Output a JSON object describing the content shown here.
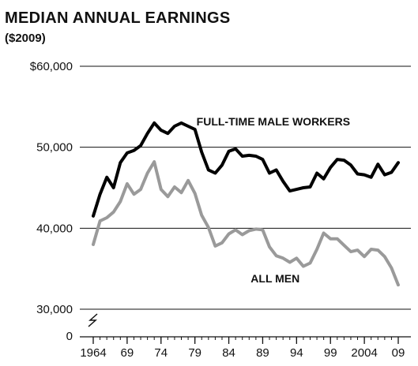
{
  "chart_data": {
    "type": "line",
    "title": "MEDIAN ANNUAL EARNINGS",
    "subtitle": "($2009)",
    "xlabel": "",
    "ylabel": "",
    "xlim": [
      1964,
      2009
    ],
    "ylim": [
      30000,
      60000
    ],
    "y_axis_break": true,
    "yticks": [
      {
        "value": 60000,
        "label": "$60,000"
      },
      {
        "value": 50000,
        "label": "50,000"
      },
      {
        "value": 40000,
        "label": "40,000"
      },
      {
        "value": 30000,
        "label": "30,000"
      },
      {
        "value": 0,
        "label": "0"
      }
    ],
    "xticks": [
      {
        "value": 1964,
        "label": "1964"
      },
      {
        "value": 1969,
        "label": "69"
      },
      {
        "value": 1974,
        "label": "74"
      },
      {
        "value": 1979,
        "label": "79"
      },
      {
        "value": 1984,
        "label": "84"
      },
      {
        "value": 1989,
        "label": "89"
      },
      {
        "value": 1994,
        "label": "94"
      },
      {
        "value": 1999,
        "label": "99"
      },
      {
        "value": 2004,
        "label": "2004"
      },
      {
        "value": 2009,
        "label": "09"
      }
    ],
    "grid": "horizontal",
    "legend": "none",
    "series": [
      {
        "name": "FULL-TIME MALE WORKERS",
        "color": "#000000",
        "x": [
          1964,
          1965,
          1966,
          1967,
          1968,
          1969,
          1970,
          1971,
          1972,
          1973,
          1974,
          1975,
          1976,
          1977,
          1978,
          1979,
          1980,
          1981,
          1982,
          1983,
          1984,
          1985,
          1986,
          1987,
          1988,
          1989,
          1990,
          1991,
          1992,
          1993,
          1994,
          1995,
          1996,
          1997,
          1998,
          1999,
          2000,
          2001,
          2002,
          2003,
          2004,
          2005,
          2006,
          2007,
          2008,
          2009
        ],
        "values": [
          41500,
          44200,
          46300,
          45000,
          48100,
          49300,
          49600,
          50200,
          51700,
          53000,
          52100,
          51700,
          52600,
          53000,
          52600,
          52200,
          49400,
          47200,
          46800,
          47800,
          49500,
          49800,
          48900,
          49000,
          48900,
          48500,
          46800,
          47200,
          45800,
          44600,
          44800,
          45000,
          45100,
          46800,
          46100,
          47500,
          48500,
          48400,
          47800,
          46700,
          46600,
          46300,
          47900,
          46600,
          46900,
          48100
        ]
      },
      {
        "name": "ALL MEN",
        "color": "#9a9a9a",
        "x": [
          1964,
          1965,
          1966,
          1967,
          1968,
          1969,
          1970,
          1971,
          1972,
          1973,
          1974,
          1975,
          1976,
          1977,
          1978,
          1979,
          1980,
          1981,
          1982,
          1983,
          1984,
          1985,
          1986,
          1987,
          1988,
          1989,
          1990,
          1991,
          1992,
          1993,
          1994,
          1995,
          1996,
          1997,
          1998,
          1999,
          2000,
          2001,
          2002,
          2003,
          2004,
          2005,
          2006,
          2007,
          2008,
          2009
        ],
        "values": [
          38000,
          40900,
          41300,
          42000,
          43300,
          45500,
          44200,
          44800,
          46800,
          48200,
          44800,
          43900,
          45100,
          44400,
          45900,
          44300,
          41600,
          40100,
          37800,
          38200,
          39300,
          39800,
          39200,
          39700,
          39900,
          39800,
          37700,
          36600,
          36300,
          35800,
          36300,
          35300,
          35700,
          37400,
          39400,
          38700,
          38700,
          37900,
          37100,
          37300,
          36500,
          37400,
          37300,
          36500,
          35100,
          33000
        ]
      }
    ],
    "annotations": [
      {
        "text": "FULL-TIME MALE WORKERS",
        "x": 1979,
        "y": 53200
      },
      {
        "text": "ALL MEN",
        "x": 1987,
        "y": 33800
      }
    ]
  }
}
